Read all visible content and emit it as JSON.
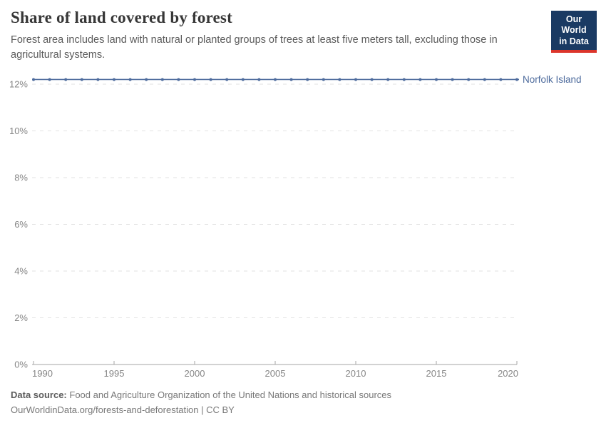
{
  "header": {
    "title": "Share of land covered by forest",
    "subtitle": "Forest area includes land with natural or planted groups of trees at least five meters tall, excluding those in agricultural systems."
  },
  "logo": {
    "line1": "Our World",
    "line2": "in Data",
    "bg_color": "#1a3a63",
    "accent_color": "#dc352b",
    "text_color": "#ffffff"
  },
  "chart_data": {
    "type": "line",
    "title": "Share of land covered by forest",
    "xlabel": "",
    "ylabel": "",
    "xlim": [
      1990,
      2020
    ],
    "ylim": [
      0,
      12
    ],
    "xticks": [
      1990,
      1995,
      2000,
      2005,
      2010,
      2015,
      2020
    ],
    "yticks": [
      0,
      2,
      4,
      6,
      8,
      10,
      12
    ],
    "ytick_suffix": "%",
    "grid": "horizontal-dashed",
    "legend_position": "end-of-line-label",
    "series": [
      {
        "name": "Norfolk Island",
        "color": "#4C6A9C",
        "x": [
          1990,
          1991,
          1992,
          1993,
          1994,
          1995,
          1996,
          1997,
          1998,
          1999,
          2000,
          2001,
          2002,
          2003,
          2004,
          2005,
          2006,
          2007,
          2008,
          2009,
          2010,
          2011,
          2012,
          2013,
          2014,
          2015,
          2016,
          2017,
          2018,
          2019,
          2020
        ],
        "values": [
          12.2,
          12.2,
          12.2,
          12.2,
          12.2,
          12.2,
          12.2,
          12.2,
          12.2,
          12.2,
          12.2,
          12.2,
          12.2,
          12.2,
          12.2,
          12.2,
          12.2,
          12.2,
          12.2,
          12.2,
          12.2,
          12.2,
          12.2,
          12.2,
          12.2,
          12.2,
          12.2,
          12.2,
          12.2,
          12.2,
          12.2
        ]
      }
    ],
    "colors": {
      "gridline": "#e2e2e2",
      "axis": "#a5a5a5",
      "tick_text": "#868686"
    }
  },
  "footer": {
    "datasource_label": "Data source:",
    "datasource_text": "Food and Agriculture Organization of the United Nations and historical sources",
    "license_line": "OurWorldinData.org/forests-and-deforestation | CC BY"
  }
}
